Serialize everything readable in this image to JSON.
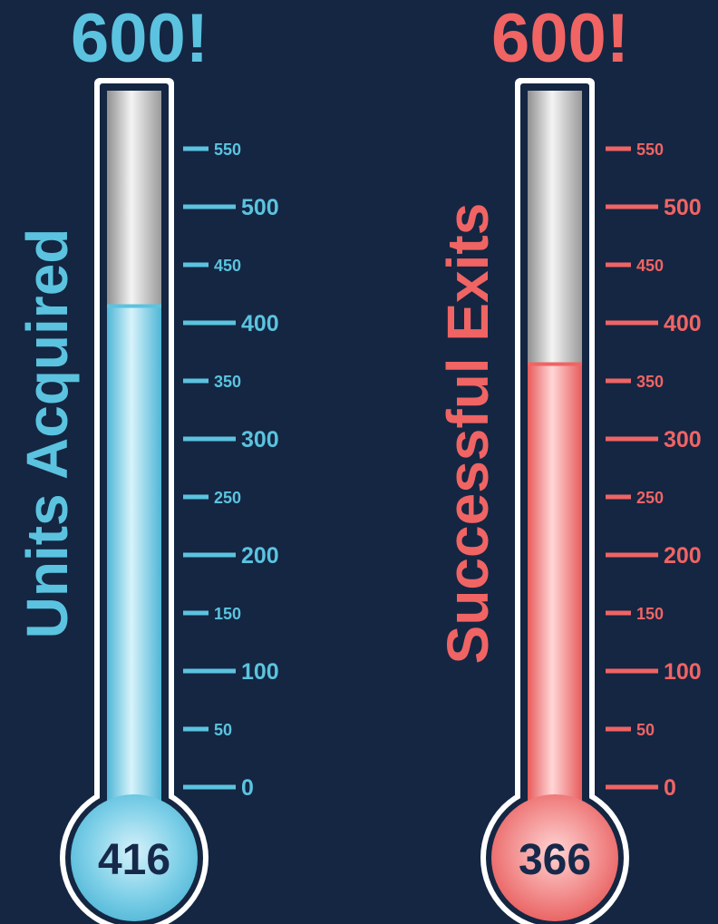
{
  "chart_data": [
    {
      "type": "thermometer",
      "title": "Units Acquired",
      "goal_label": "600!",
      "goal": 600,
      "value": 416,
      "value_label": "416",
      "scale": {
        "min": 0,
        "max": 600
      },
      "ticks": [
        0,
        50,
        100,
        150,
        200,
        250,
        300,
        350,
        400,
        450,
        500,
        550
      ],
      "tick_labels": [
        "0",
        "50",
        "100",
        "150",
        "200",
        "250",
        "300",
        "350",
        "400",
        "450",
        "500",
        "550"
      ],
      "major_ticks": [
        0,
        100,
        200,
        300,
        400,
        500
      ],
      "color": "#5BC3DF",
      "bulb_text_color": "#17294A"
    },
    {
      "type": "thermometer",
      "title": "Successful Exits",
      "goal_label": "600!",
      "goal": 600,
      "value": 366,
      "value_label": "366",
      "scale": {
        "min": 0,
        "max": 600
      },
      "ticks": [
        0,
        50,
        100,
        150,
        200,
        250,
        300,
        350,
        400,
        450,
        500,
        550
      ],
      "tick_labels": [
        "0",
        "50",
        "100",
        "150",
        "200",
        "250",
        "300",
        "350",
        "400",
        "450",
        "500",
        "550"
      ],
      "major_ticks": [
        0,
        100,
        200,
        300,
        400,
        500
      ],
      "color": "#F06464",
      "bulb_text_color": "#17294A"
    }
  ],
  "colors": {
    "background": "#142642",
    "tube_outline": "#FFFFFF",
    "tube_empty": "#B9B9B9"
  }
}
